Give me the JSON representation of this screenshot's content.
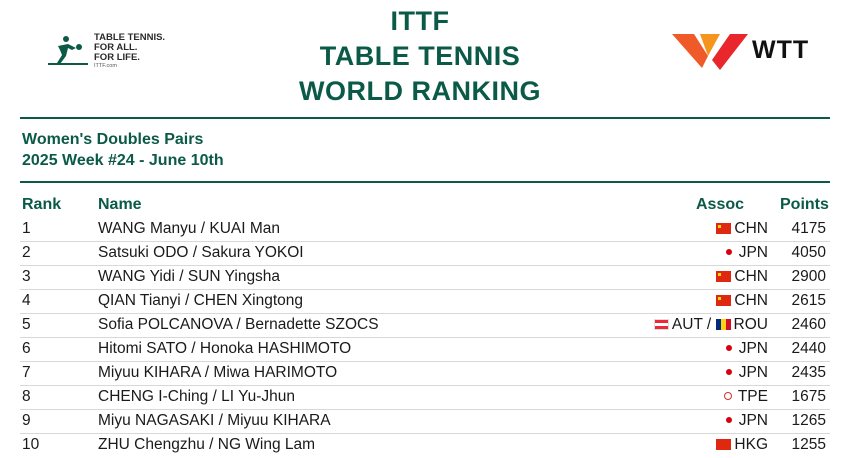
{
  "header": {
    "ittf_logo": {
      "tagline_lines": [
        "TABLE TENNIS.",
        "FOR ALL.",
        "FOR LIFE."
      ],
      "url": "ITTF.com",
      "icon": "ittf-player-icon"
    },
    "title_lines": [
      "ITTF",
      "TABLE TENNIS",
      "WORLD RANKING"
    ],
    "wtt_logo": {
      "text": "WTT",
      "icon": "wtt-w-icon"
    }
  },
  "subtitle": {
    "category": "Women's Doubles Pairs",
    "week": "2025 Week #24 - June 10th"
  },
  "table": {
    "headers": {
      "rank": "Rank",
      "name": "Name",
      "assoc": "Assoc",
      "points": "Points"
    },
    "rows": [
      {
        "rank": "1",
        "name": "WANG Manyu / KUAI Man",
        "assoc": "CHN",
        "flag": "cn-flag-icon",
        "points": "4175"
      },
      {
        "rank": "2",
        "name": "Satsuki ODO / Sakura YOKOI",
        "assoc": "JPN",
        "flag": "jp-flag-icon",
        "points": "4050"
      },
      {
        "rank": "3",
        "name": "WANG Yidi / SUN Yingsha",
        "assoc": "CHN",
        "flag": "cn-flag-icon",
        "points": "2900"
      },
      {
        "rank": "4",
        "name": "QIAN Tianyi / CHEN Xingtong",
        "assoc": "CHN",
        "flag": "cn-flag-icon",
        "points": "2615"
      },
      {
        "rank": "5",
        "name": "Sofia POLCANOVA / Bernadette SZOCS",
        "assoc": "AUT / ",
        "assoc2": "ROU",
        "flag": "at-flag-icon",
        "flag2": "ro-flag-icon",
        "points": "2460"
      },
      {
        "rank": "6",
        "name": "Hitomi SATO / Honoka HASHIMOTO",
        "assoc": "JPN",
        "flag": "jp-flag-icon",
        "points": "2440"
      },
      {
        "rank": "7",
        "name": "Miyuu KIHARA / Miwa HARIMOTO",
        "assoc": "JPN",
        "flag": "jp-flag-icon",
        "points": "2435"
      },
      {
        "rank": "8",
        "name": "CHENG I-Ching / LI Yu-Jhun",
        "assoc": "TPE",
        "flag": "tpe-flag-icon",
        "points": "1675"
      },
      {
        "rank": "9",
        "name": "Miyu NAGASAKI / Miyuu KIHARA",
        "assoc": "JPN",
        "flag": "jp-flag-icon",
        "points": "1265"
      },
      {
        "rank": "10",
        "name": "ZHU Chengzhu / NG Wing Lam",
        "assoc": "HKG",
        "flag": "hk-flag-icon",
        "points": "1255"
      }
    ]
  },
  "colors": {
    "brand_green": "#0b5a48",
    "wtt_orange": "#f05a28",
    "wtt_red": "#e8262b"
  }
}
